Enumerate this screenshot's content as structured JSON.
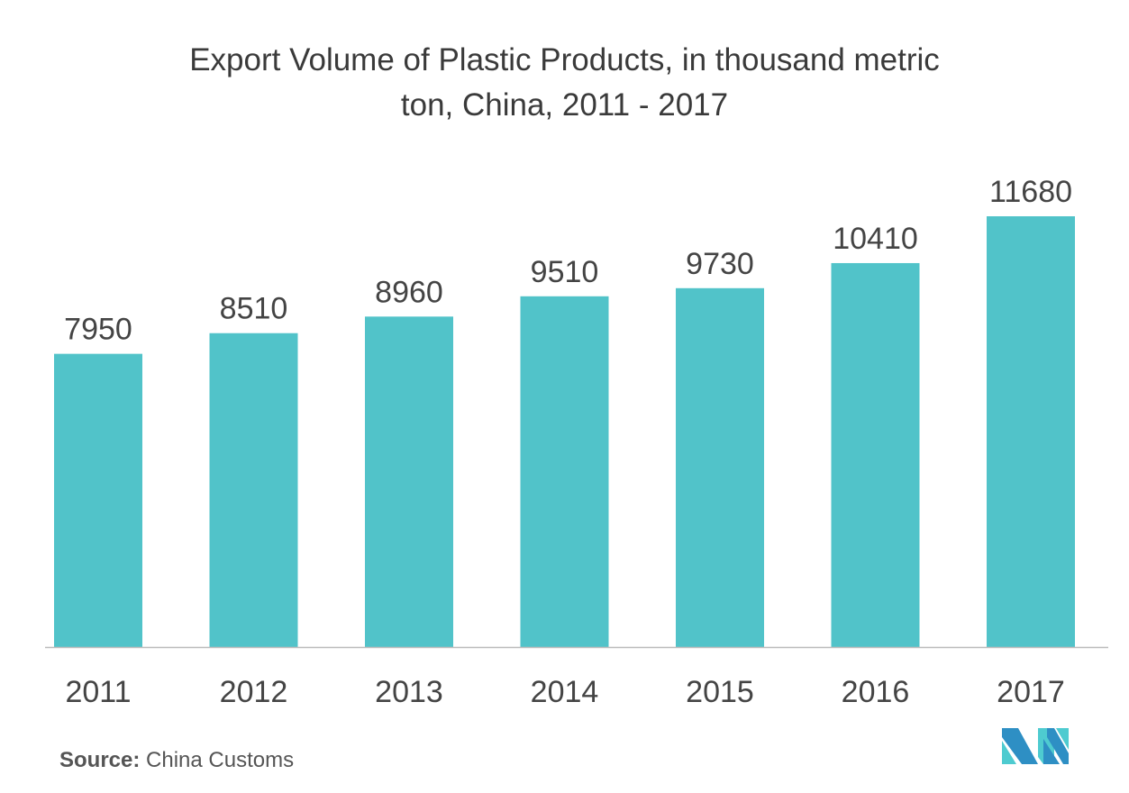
{
  "chart_data": {
    "type": "bar",
    "title_line1": "Export Volume of Plastic Products, in thousand metric",
    "title_line2": "ton, China, 2011 - 2017",
    "categories": [
      "2011",
      "2012",
      "2013",
      "2014",
      "2015",
      "2016",
      "2017"
    ],
    "values": [
      7950,
      8510,
      8960,
      9510,
      9730,
      10410,
      11680
    ],
    "xlabel": "",
    "ylabel": "",
    "ylim": [
      0,
      11680
    ],
    "grid": false,
    "bar_color": "#51c3c9"
  },
  "source": {
    "label": "Source:",
    "text": "China Customs"
  },
  "logo": {
    "text": "MI"
  }
}
